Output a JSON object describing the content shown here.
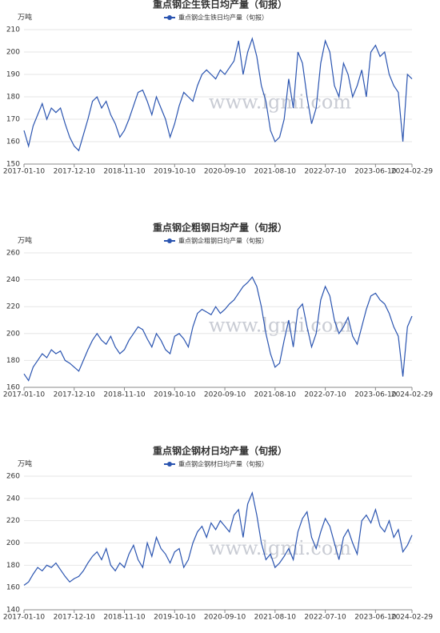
{
  "chart_data": [
    {
      "type": "line",
      "title": "重点钢企生铁日均产量（旬报）",
      "y_label": "万吨",
      "watermark": "www.lgmi.com",
      "categories": [
        "2017-01-10",
        null,
        null,
        null,
        null,
        null,
        null,
        null,
        null,
        null,
        null,
        "2017-12-10",
        null,
        null,
        null,
        null,
        null,
        null,
        null,
        null,
        null,
        null,
        "2018-11-10",
        null,
        null,
        null,
        null,
        null,
        null,
        null,
        null,
        null,
        null,
        "2019-10-10",
        null,
        null,
        null,
        null,
        null,
        null,
        null,
        null,
        null,
        null,
        "2020-09-10",
        null,
        null,
        null,
        null,
        null,
        null,
        null,
        null,
        null,
        null,
        "2021-08-10",
        null,
        null,
        null,
        null,
        null,
        null,
        null,
        null,
        null,
        null,
        "2022-07-10",
        null,
        null,
        null,
        null,
        null,
        null,
        null,
        null,
        null,
        null,
        "2023-06-10",
        null,
        null,
        null,
        null,
        null,
        null,
        null,
        "2024-02-29"
      ],
      "series": [
        {
          "name": "重点钢企生铁日均产量（旬报）",
          "color": "#2a54b0",
          "values": [
            165,
            158,
            167,
            172,
            177,
            170,
            175,
            173,
            175,
            168,
            162,
            158,
            156,
            163,
            170,
            178,
            180,
            175,
            178,
            172,
            168,
            162,
            165,
            170,
            176,
            182,
            183,
            178,
            172,
            180,
            175,
            170,
            162,
            168,
            176,
            182,
            180,
            178,
            185,
            190,
            192,
            190,
            188,
            192,
            190,
            193,
            196,
            205,
            190,
            200,
            206,
            198,
            185,
            178,
            165,
            160,
            162,
            170,
            188,
            175,
            200,
            195,
            180,
            168,
            175,
            195,
            205,
            200,
            185,
            180,
            195,
            190,
            180,
            185,
            192,
            180,
            200,
            203,
            198,
            200,
            190,
            185,
            182,
            160,
            190,
            188
          ]
        }
      ],
      "ylim": [
        150,
        210
      ],
      "yticks": [
        150,
        160,
        170,
        180,
        190,
        200,
        210
      ],
      "grid": true
    },
    {
      "type": "line",
      "title": "重点钢企粗钢日均产量（旬报）",
      "y_label": "万吨",
      "watermark": "www.lgmi.com",
      "categories": [
        "2017-01-10",
        null,
        null,
        null,
        null,
        null,
        null,
        null,
        null,
        null,
        null,
        "2017-12-10",
        null,
        null,
        null,
        null,
        null,
        null,
        null,
        null,
        null,
        null,
        "2018-11-10",
        null,
        null,
        null,
        null,
        null,
        null,
        null,
        null,
        null,
        null,
        "2019-10-10",
        null,
        null,
        null,
        null,
        null,
        null,
        null,
        null,
        null,
        null,
        "2020-09-10",
        null,
        null,
        null,
        null,
        null,
        null,
        null,
        null,
        null,
        null,
        "2021-08-10",
        null,
        null,
        null,
        null,
        null,
        null,
        null,
        null,
        null,
        null,
        "2022-07-10",
        null,
        null,
        null,
        null,
        null,
        null,
        null,
        null,
        null,
        null,
        "2023-06-10",
        null,
        null,
        null,
        null,
        null,
        null,
        null,
        "2024-02-29"
      ],
      "series": [
        {
          "name": "重点钢企粗钢日均产量（旬报）",
          "color": "#2a54b0",
          "values": [
            170,
            165,
            175,
            180,
            185,
            182,
            188,
            185,
            187,
            180,
            178,
            175,
            172,
            180,
            188,
            195,
            200,
            195,
            192,
            198,
            190,
            185,
            188,
            195,
            200,
            205,
            203,
            196,
            190,
            200,
            195,
            188,
            185,
            198,
            200,
            196,
            190,
            205,
            215,
            218,
            216,
            214,
            220,
            215,
            218,
            222,
            225,
            230,
            235,
            238,
            242,
            235,
            220,
            200,
            185,
            175,
            178,
            195,
            210,
            190,
            218,
            222,
            205,
            190,
            200,
            225,
            235,
            228,
            210,
            200,
            205,
            212,
            198,
            192,
            205,
            218,
            228,
            230,
            225,
            222,
            215,
            205,
            198,
            168,
            205,
            213
          ]
        }
      ],
      "ylim": [
        160,
        260
      ],
      "yticks": [
        160,
        180,
        200,
        220,
        240,
        260
      ],
      "grid": true
    },
    {
      "type": "line",
      "title": "重点钢企钢材日均产量（旬报）",
      "y_label": "万吨",
      "watermark": "www.lgmi.com",
      "categories": [
        "2017-01-10",
        null,
        null,
        null,
        null,
        null,
        null,
        null,
        null,
        null,
        null,
        "2017-12-10",
        null,
        null,
        null,
        null,
        null,
        null,
        null,
        null,
        null,
        null,
        "2018-11-10",
        null,
        null,
        null,
        null,
        null,
        null,
        null,
        null,
        null,
        null,
        "2019-10-10",
        null,
        null,
        null,
        null,
        null,
        null,
        null,
        null,
        null,
        null,
        "2020-09-10",
        null,
        null,
        null,
        null,
        null,
        null,
        null,
        null,
        null,
        null,
        "2021-08-10",
        null,
        null,
        null,
        null,
        null,
        null,
        null,
        null,
        null,
        null,
        "2022-07-10",
        null,
        null,
        null,
        null,
        null,
        null,
        null,
        null,
        null,
        null,
        "2023-06-10",
        null,
        null,
        null,
        null,
        null,
        null,
        null,
        "2024-02-29"
      ],
      "series": [
        {
          "name": "重点钢企钢材日均产量（旬报）",
          "color": "#2a54b0",
          "values": [
            162,
            165,
            172,
            178,
            175,
            180,
            178,
            182,
            176,
            170,
            165,
            168,
            170,
            175,
            182,
            188,
            192,
            185,
            195,
            180,
            175,
            182,
            178,
            190,
            198,
            185,
            178,
            200,
            188,
            205,
            195,
            190,
            182,
            192,
            195,
            178,
            185,
            200,
            210,
            215,
            205,
            218,
            212,
            220,
            215,
            210,
            225,
            230,
            205,
            235,
            245,
            225,
            200,
            185,
            190,
            178,
            182,
            188,
            195,
            185,
            210,
            222,
            228,
            205,
            195,
            210,
            222,
            215,
            200,
            185,
            205,
            212,
            200,
            190,
            220,
            225,
            218,
            230,
            215,
            210,
            220,
            205,
            212,
            192,
            198,
            207
          ]
        }
      ],
      "ylim": [
        140,
        260
      ],
      "yticks": [
        140,
        160,
        180,
        200,
        220,
        240,
        260
      ],
      "grid": true
    }
  ]
}
